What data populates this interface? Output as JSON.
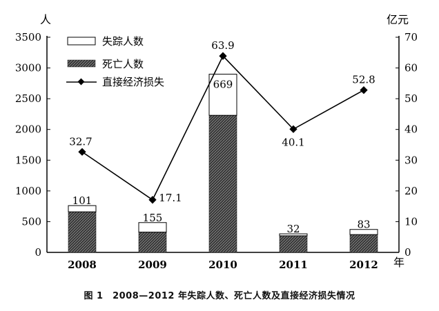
{
  "chart_data": {
    "type": "bar",
    "categories": [
      "2008",
      "2009",
      "2010",
      "2011",
      "2012"
    ],
    "left_axis": {
      "unit": "人",
      "ylim": [
        0,
        3500
      ],
      "ticks": [
        0,
        500,
        1000,
        1500,
        2000,
        2500,
        3000,
        3500
      ]
    },
    "right_axis": {
      "unit": "亿元",
      "ylim": [
        0,
        70
      ],
      "ticks": [
        0,
        10,
        20,
        30,
        40,
        50,
        60,
        70
      ]
    },
    "xlabel": "年",
    "series": [
      {
        "name": "失踪人数",
        "kind": "bar-stack-top",
        "axis": "left",
        "values": [
          101,
          155,
          669,
          32,
          83
        ]
      },
      {
        "name": "死亡人数",
        "kind": "bar-stack-bottom",
        "axis": "left",
        "values": [
          660,
          330,
          2230,
          270,
          290
        ]
      },
      {
        "name": "直接经济损失",
        "kind": "line",
        "axis": "right",
        "values": [
          32.7,
          17.1,
          63.9,
          40.1,
          52.8
        ],
        "labels": [
          "32.7",
          "17.1",
          "63.9",
          "40.1",
          "52.8"
        ]
      }
    ],
    "bar_labels": [
      "101",
      "155",
      "669",
      "32",
      "83"
    ],
    "legend": {
      "placement": "top-left",
      "items": [
        "失踪人数",
        "死亡人数",
        "直接经济损失"
      ]
    },
    "grid": false
  },
  "caption": "图 1　2008—2012 年失踪人数、死亡人数及直接经济损失情况"
}
